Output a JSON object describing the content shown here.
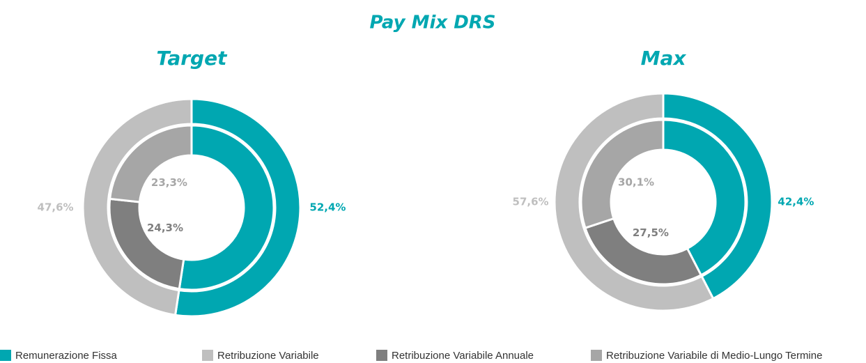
{
  "title": "Pay Mix DRS",
  "legend": {
    "items": [
      {
        "name": "Remunerazione Fissa",
        "color": "#00a7b1"
      },
      {
        "name": "Retribuzione Variabile",
        "color": "#bfbfbf"
      },
      {
        "name": "Retribuzione Variabile Annuale",
        "color": "#7f7f7f"
      },
      {
        "name": "Retribuzione Variabile di Medio-Lungo Termine",
        "color": "#a6a6a6"
      }
    ]
  },
  "chart_data": [
    {
      "type": "donut",
      "title": "Target",
      "rings": [
        {
          "values": [
            52.4,
            47.6
          ],
          "value_labels": [
            "52,4%",
            "47,6%"
          ],
          "colors": [
            "#00a7b1",
            "#bfbfbf"
          ]
        },
        {
          "values": [
            52.4,
            24.3,
            23.3
          ],
          "value_labels": [
            null,
            "24,3%",
            "23,3%"
          ],
          "colors": [
            "#00a7b1",
            "#7f7f7f",
            "#a6a6a6"
          ]
        }
      ]
    },
    {
      "type": "donut",
      "title": "Max",
      "rings": [
        {
          "values": [
            42.4,
            57.6
          ],
          "value_labels": [
            "42,4%",
            "57,6%"
          ],
          "colors": [
            "#00a7b1",
            "#bfbfbf"
          ]
        },
        {
          "values": [
            42.4,
            27.5,
            30.1
          ],
          "value_labels": [
            null,
            "27,5%",
            "30,1%"
          ],
          "colors": [
            "#00a7b1",
            "#7f7f7f",
            "#a6a6a6"
          ]
        }
      ]
    }
  ]
}
